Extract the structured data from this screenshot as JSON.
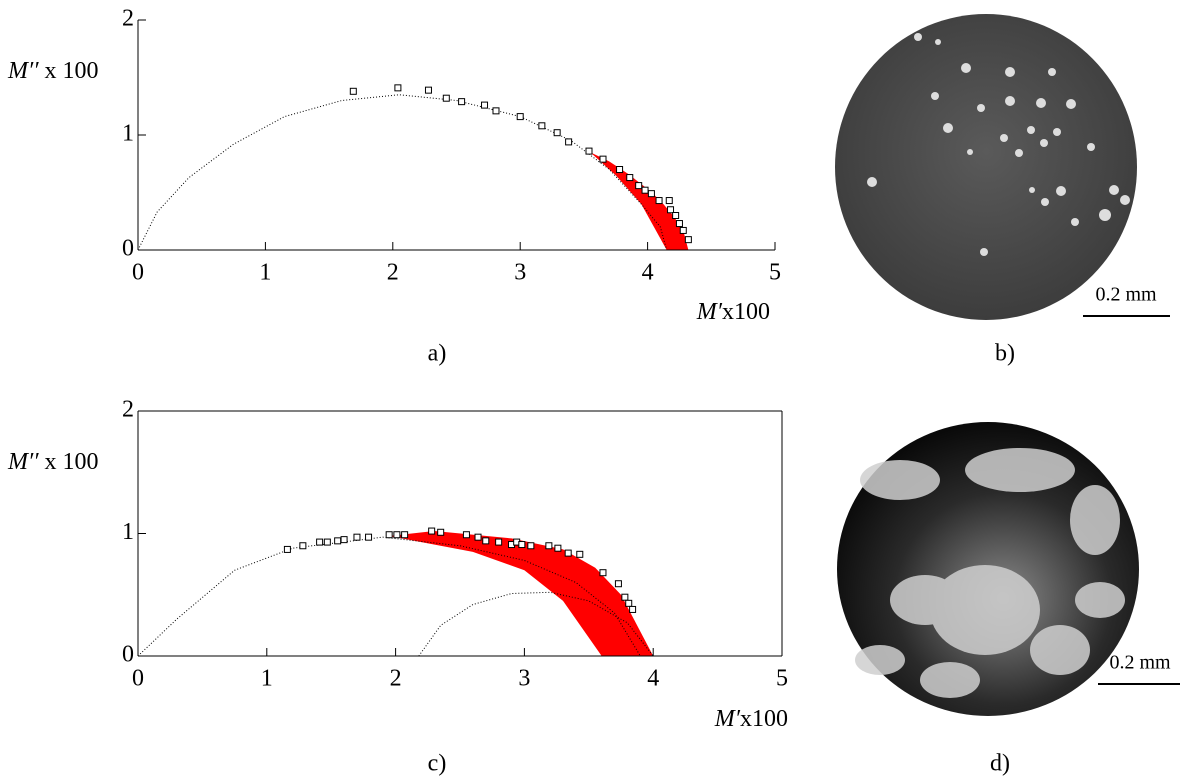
{
  "chart_data": [
    {
      "type": "scatter",
      "caption": "a)",
      "y_label": {
        "symbol": "M′′",
        "rest": " x 100"
      },
      "x_label": {
        "symbol": "M′",
        "rest": "x100"
      },
      "xlim": [
        0,
        5
      ],
      "ylim": [
        0,
        2
      ],
      "xticks": [
        0,
        1,
        2,
        3,
        4,
        5
      ],
      "yticks": [
        0,
        1,
        2
      ],
      "frame": false,
      "points": {
        "x": [
          1.69,
          2.04,
          2.28,
          2.42,
          2.54,
          2.72,
          2.81,
          3.0,
          3.17,
          3.29,
          3.38,
          3.54,
          3.65,
          3.78,
          3.86,
          3.93,
          3.98,
          4.03,
          4.09,
          4.17,
          4.18,
          4.22,
          4.25,
          4.28,
          4.32
        ],
        "y": [
          1.38,
          1.41,
          1.39,
          1.32,
          1.29,
          1.26,
          1.21,
          1.16,
          1.08,
          1.02,
          0.94,
          0.86,
          0.79,
          0.7,
          0.63,
          0.56,
          0.52,
          0.49,
          0.43,
          0.43,
          0.35,
          0.3,
          0.23,
          0.17,
          0.09
        ]
      },
      "curves": [
        {
          "x": [
            0,
            0.15,
            0.4,
            0.75,
            1.15,
            1.6,
            2.05,
            2.5,
            3.0,
            3.4,
            3.7,
            3.95,
            4.1,
            4.15
          ],
          "y": [
            0,
            0.33,
            0.63,
            0.92,
            1.16,
            1.3,
            1.35,
            1.3,
            1.16,
            0.95,
            0.7,
            0.4,
            0.2,
            0
          ]
        }
      ],
      "fill": {
        "color": "#ff0000",
        "x": [
          3.55,
          3.7,
          3.85,
          4.0,
          4.1,
          4.2,
          4.28,
          4.32,
          4.15,
          4.05,
          3.95,
          3.75,
          3.55
        ],
        "y": [
          0.85,
          0.77,
          0.66,
          0.53,
          0.43,
          0.3,
          0.17,
          0,
          0,
          0.2,
          0.4,
          0.65,
          0.85
        ]
      }
    },
    {
      "type": "scatter",
      "caption": "c)",
      "y_label": {
        "symbol": "M′′",
        "rest": " x 100"
      },
      "x_label": {
        "symbol": "M′",
        "rest": "x100"
      },
      "xlim": [
        0,
        5
      ],
      "ylim": [
        0,
        2
      ],
      "xticks": [
        0,
        1,
        2,
        3,
        4,
        5
      ],
      "yticks": [
        0,
        1,
        2
      ],
      "frame": true,
      "points": {
        "x": [
          1.16,
          1.28,
          1.41,
          1.47,
          1.55,
          1.6,
          1.7,
          1.79,
          1.95,
          2.01,
          2.07,
          2.28,
          2.35,
          2.55,
          2.64,
          2.7,
          2.8,
          2.9,
          2.94,
          2.98,
          3.05,
          3.19,
          3.26,
          3.34,
          3.43,
          3.61,
          3.73,
          3.78,
          3.81,
          3.84
        ],
        "y": [
          0.87,
          0.9,
          0.93,
          0.93,
          0.94,
          0.95,
          0.97,
          0.97,
          0.99,
          0.99,
          0.99,
          1.02,
          1.01,
          0.99,
          0.97,
          0.94,
          0.93,
          0.91,
          0.93,
          0.91,
          0.9,
          0.9,
          0.88,
          0.84,
          0.83,
          0.68,
          0.59,
          0.48,
          0.43,
          0.38
        ]
      },
      "curves": [
        {
          "x": [
            0,
            0.3,
            0.75,
            1.2,
            1.9,
            2.5,
            3.0,
            3.4,
            3.7,
            3.9
          ],
          "y": [
            0,
            0.3,
            0.7,
            0.88,
            0.97,
            0.9,
            0.78,
            0.6,
            0.35,
            0
          ]
        },
        {
          "x": [
            2.18,
            2.35,
            2.6,
            2.9,
            3.2,
            3.5,
            3.8,
            4.0
          ],
          "y": [
            0,
            0.25,
            0.42,
            0.51,
            0.52,
            0.45,
            0.27,
            0
          ]
        }
      ],
      "fill": {
        "color": "#ff0000",
        "x": [
          1.95,
          2.3,
          2.9,
          3.3,
          3.55,
          3.75,
          4.0,
          3.6,
          3.3,
          3.0,
          2.6,
          2.2,
          1.95
        ],
        "y": [
          0.98,
          1.02,
          0.96,
          0.87,
          0.72,
          0.5,
          0,
          0,
          0.45,
          0.7,
          0.85,
          0.93,
          0.98
        ]
      }
    }
  ],
  "images": [
    {
      "caption": "b)",
      "scale_label": "0.2 mm"
    },
    {
      "caption": "d)",
      "scale_label": "0.2 mm"
    }
  ]
}
